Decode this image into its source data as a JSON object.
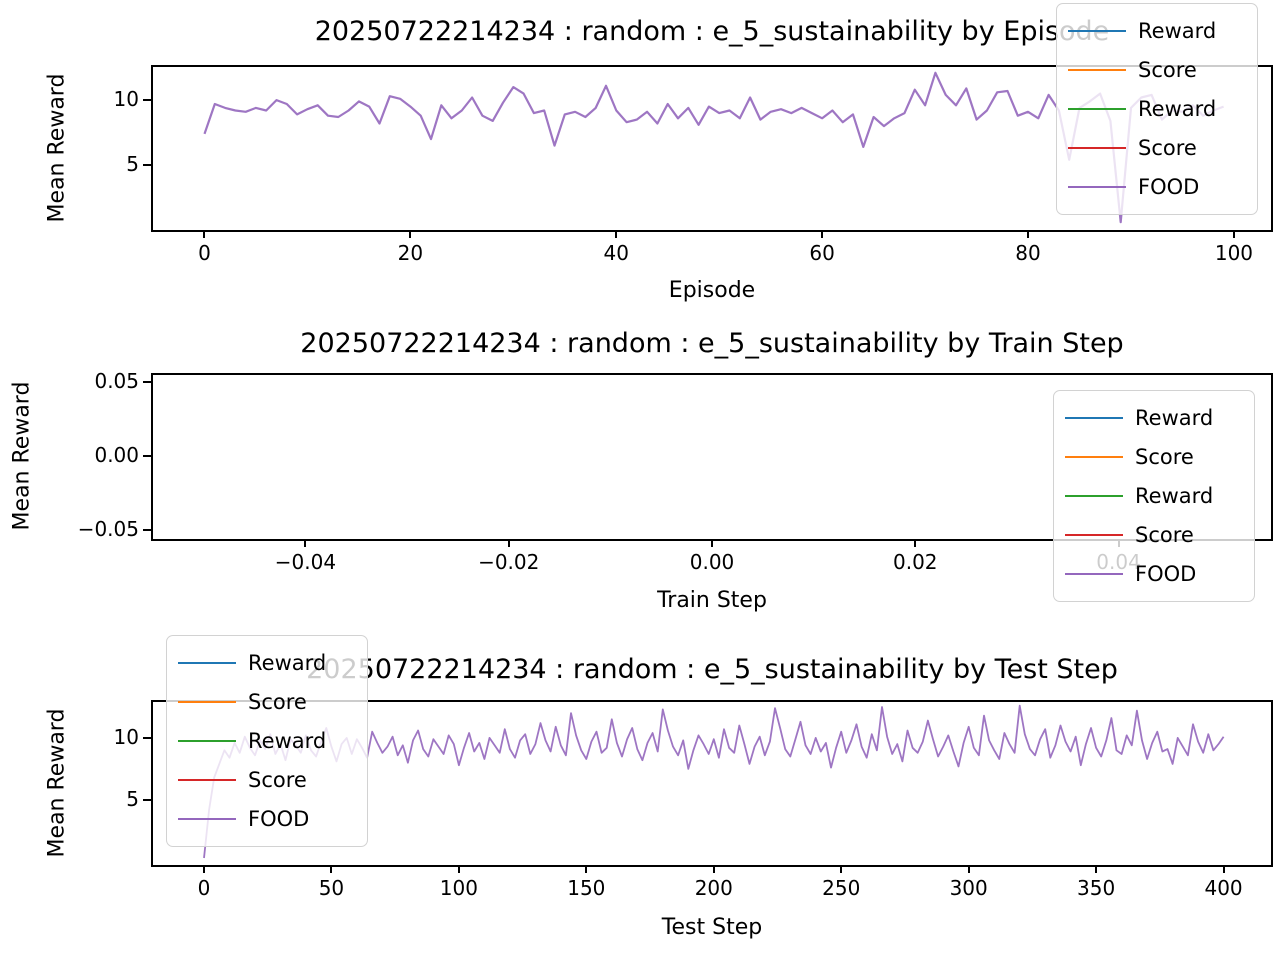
{
  "figure": {
    "background": "#ffffff"
  },
  "legend": {
    "entries": [
      {
        "label": "Reward",
        "color": "#1f77b4"
      },
      {
        "label": "Score",
        "color": "#ff7f0e"
      },
      {
        "label": "Reward",
        "color": "#2ca02c"
      },
      {
        "label": "Score",
        "color": "#d62728"
      },
      {
        "label": "FOOD",
        "color": "#9467bd"
      }
    ]
  },
  "chart_data": [
    {
      "type": "line",
      "title": "20250722214234 : random : e_5_sustainability by Episode",
      "xlabel": "Episode",
      "ylabel": "Mean Reward",
      "xlim": [
        -5,
        103.6
      ],
      "ylim": [
        0.15,
        12.55
      ],
      "xticks": {
        "values": [
          0,
          20,
          40,
          60,
          80,
          100
        ],
        "labels": [
          "0",
          "20",
          "40",
          "60",
          "80",
          "100"
        ]
      },
      "yticks": {
        "values": [
          5,
          10
        ],
        "labels": [
          "5",
          "10"
        ]
      },
      "legend_position": "upper right",
      "grid": false,
      "series": [
        {
          "name": "FOOD",
          "color": "#9467bd",
          "x_start": 0,
          "x_step": 1,
          "values": [
            7.4,
            9.7,
            9.4,
            9.2,
            9.1,
            9.4,
            9.2,
            10.0,
            9.7,
            8.9,
            9.3,
            9.6,
            8.8,
            8.7,
            9.2,
            9.9,
            9.5,
            8.2,
            10.3,
            10.1,
            9.5,
            8.8,
            7.0,
            9.6,
            8.6,
            9.2,
            10.2,
            8.8,
            8.4,
            9.8,
            11.0,
            10.5,
            9.0,
            9.2,
            6.5,
            8.9,
            9.1,
            8.7,
            9.4,
            11.1,
            9.2,
            8.3,
            8.5,
            9.1,
            8.2,
            9.7,
            8.6,
            9.4,
            8.1,
            9.5,
            9.0,
            9.2,
            8.6,
            10.2,
            8.5,
            9.1,
            9.3,
            9.0,
            9.4,
            9.0,
            8.6,
            9.2,
            8.3,
            8.9,
            6.4,
            8.7,
            8.0,
            8.6,
            9.0,
            10.8,
            9.6,
            12.1,
            10.4,
            9.6,
            10.9,
            8.5,
            9.2,
            10.6,
            10.7,
            8.8,
            9.1,
            8.6,
            10.4,
            9.2,
            5.4,
            9.4,
            9.9,
            10.5,
            8.4,
            0.6,
            9.4,
            10.2,
            10.4,
            8.5,
            9.2,
            9.1,
            9.6,
            8.8,
            9.2,
            9.5
          ]
        }
      ]
    },
    {
      "type": "line",
      "title": "20250722214234 : random : e_5_sustainability by Train Step",
      "xlabel": "Train Step",
      "ylabel": "Mean Reward",
      "xlim": [
        -0.055,
        0.055
      ],
      "ylim": [
        -0.055,
        0.055
      ],
      "xticks": {
        "values": [
          -0.04,
          -0.02,
          0.0,
          0.02,
          0.04
        ],
        "labels": [
          "−0.04",
          "−0.02",
          "0.00",
          "0.02",
          "0.04"
        ]
      },
      "yticks": {
        "values": [
          -0.05,
          0.0,
          0.05
        ],
        "labels": [
          "−0.05",
          "0.00",
          "0.05"
        ]
      },
      "legend_position": "center right",
      "grid": false,
      "series": []
    },
    {
      "type": "line",
      "title": "20250722214234 : random : e_5_sustainability by Test Step",
      "xlabel": "Test Step",
      "ylabel": "Mean Reward",
      "xlim": [
        -20,
        418.6
      ],
      "ylim": [
        -0.1,
        12.9
      ],
      "xticks": {
        "values": [
          0,
          50,
          100,
          150,
          200,
          250,
          300,
          350,
          400
        ],
        "labels": [
          "0",
          "50",
          "100",
          "150",
          "200",
          "250",
          "300",
          "350",
          "400"
        ]
      },
      "yticks": {
        "values": [
          5,
          10
        ],
        "labels": [
          "5",
          "10"
        ]
      },
      "legend_position": "upper left",
      "grid": false,
      "series": [
        {
          "name": "FOOD",
          "color": "#9467bd",
          "x_start": 0,
          "x_step": 2,
          "values": [
            0.3,
            4.2,
            6.8,
            7.9,
            9.0,
            8.4,
            9.6,
            8.8,
            10.1,
            9.2,
            8.6,
            9.8,
            9.1,
            10.3,
            8.7,
            9.5,
            8.2,
            9.9,
            9.4,
            8.8,
            10.2,
            9.0,
            8.5,
            9.7,
            10.8,
            9.3,
            8.1,
            9.5,
            10.0,
            8.7,
            9.9,
            9.2,
            8.4,
            10.5,
            9.6,
            8.8,
            9.3,
            10.1,
            8.6,
            9.4,
            8.0,
            9.8,
            10.6,
            9.1,
            8.5,
            9.9,
            9.3,
            8.7,
            10.2,
            9.5,
            7.8,
            9.2,
            10.4,
            8.9,
            9.6,
            8.3,
            10.0,
            9.4,
            8.8,
            10.7,
            9.1,
            8.4,
            9.8,
            10.3,
            8.7,
            9.5,
            11.2,
            9.8,
            8.9,
            10.9,
            9.4,
            8.6,
            12.0,
            10.2,
            9.0,
            8.3,
            9.7,
            10.5,
            8.8,
            9.2,
            11.5,
            9.6,
            8.5,
            9.9,
            10.8,
            9.1,
            8.2,
            9.6,
            10.4,
            8.9,
            12.3,
            10.6,
            9.3,
            8.6,
            9.8,
            7.5,
            9.0,
            10.2,
            9.5,
            8.7,
            9.9,
            8.4,
            10.7,
            9.2,
            8.8,
            11.0,
            9.5,
            7.9,
            9.3,
            10.1,
            8.6,
            9.7,
            12.4,
            10.8,
            9.1,
            8.5,
            9.9,
            11.3,
            9.4,
            8.7,
            10.0,
            8.9,
            9.6,
            7.6,
            9.2,
            10.5,
            8.8,
            9.8,
            11.1,
            9.3,
            8.4,
            10.3,
            9.0,
            12.5,
            10.1,
            8.7,
            9.5,
            8.1,
            10.6,
            9.2,
            8.8,
            9.7,
            11.4,
            9.9,
            8.5,
            9.3,
            10.2,
            8.9,
            7.7,
            9.6,
            10.9,
            9.2,
            8.6,
            11.8,
            9.8,
            9.0,
            8.3,
            10.4,
            9.5,
            8.8,
            12.6,
            10.3,
            9.1,
            8.6,
            9.9,
            10.7,
            8.4,
            9.4,
            11.0,
            9.7,
            8.9,
            10.1,
            7.8,
            9.5,
            10.8,
            9.2,
            8.5,
            9.8,
            11.6,
            9.0,
            8.7,
            10.2,
            9.4,
            12.2,
            9.8,
            8.3,
            9.6,
            10.5,
            8.9,
            9.1,
            7.9,
            10.0,
            9.3,
            8.6,
            11.1,
            9.7,
            8.8,
            10.3,
            9.0,
            9.5,
            10.1
          ]
        }
      ]
    }
  ]
}
